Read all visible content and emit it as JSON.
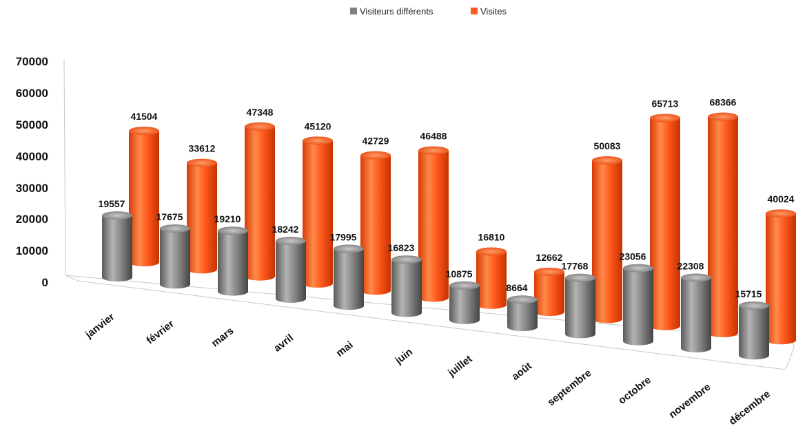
{
  "chart_data": {
    "type": "bar",
    "categories": [
      "janvier",
      "février",
      "mars",
      "avril",
      "mai",
      "juin",
      "juillet",
      "août",
      "septembre",
      "octobre",
      "novembre",
      "décembre"
    ],
    "series": [
      {
        "name": "Visiteurs différents",
        "values": [
          19557,
          17675,
          19210,
          18242,
          17995,
          16823,
          10875,
          8664,
          17768,
          23056,
          22308,
          15715
        ],
        "color": "#808080"
      },
      {
        "name": "Visites",
        "values": [
          41504,
          33612,
          47348,
          45120,
          42729,
          46488,
          16810,
          12662,
          50083,
          65713,
          68366,
          40024
        ],
        "color": "#FF5A1F"
      }
    ],
    "yticks": [
      "0",
      "10000",
      "20000",
      "30000",
      "40000",
      "50000",
      "60000",
      "70000"
    ],
    "ylim": [
      0,
      70000
    ],
    "legend_position": "top-center",
    "style": "3d-cylinder"
  }
}
